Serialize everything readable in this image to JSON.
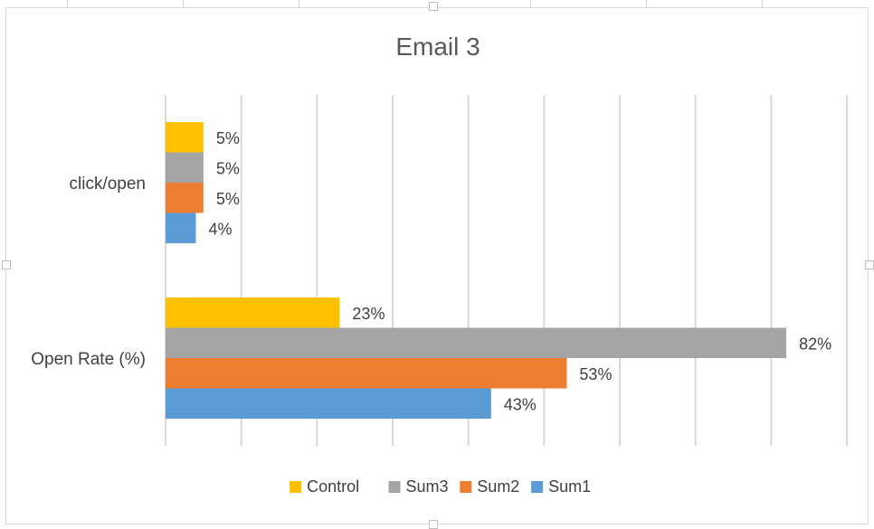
{
  "chart_data": {
    "type": "bar",
    "orientation": "horizontal",
    "title": "Email 3",
    "categories": [
      "click/open",
      "Open Rate (%)"
    ],
    "series": [
      {
        "name": "Control",
        "color": "#FFC000",
        "values": [
          5,
          23
        ]
      },
      {
        "name": "Sum3",
        "color": "#A5A5A5",
        "values": [
          5,
          82
        ]
      },
      {
        "name": "Sum2",
        "color": "#ED7D31",
        "values": [
          5,
          53
        ]
      },
      {
        "name": "Sum1",
        "color": "#5B9BD5",
        "values": [
          4,
          43
        ]
      }
    ],
    "data_labels": [
      [
        "5%",
        "23%"
      ],
      [
        "5%",
        "82%"
      ],
      [
        "5%",
        "53%"
      ],
      [
        "4%",
        "43%"
      ]
    ],
    "xlim": [
      0,
      90
    ],
    "x_gridlines": true,
    "legend_position": "bottom"
  }
}
